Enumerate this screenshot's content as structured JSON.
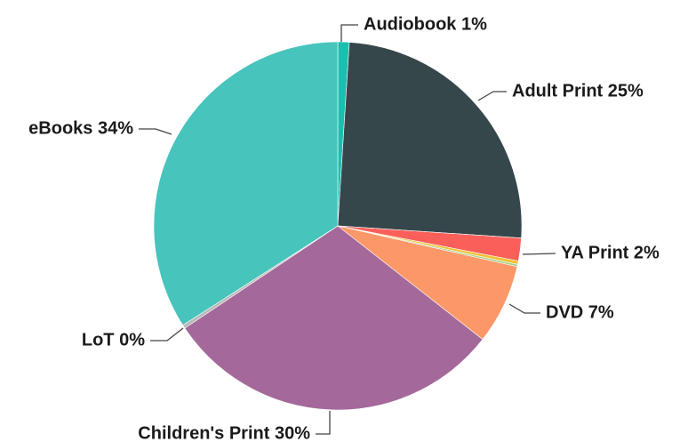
{
  "chart_data": {
    "type": "pie",
    "title": "",
    "slices": [
      {
        "label": "Audiobook",
        "value": 1,
        "pct_label": "Audiobook 1%",
        "color": "#1bbfb0"
      },
      {
        "label": "Adult Print",
        "value": 25,
        "pct_label": "Adult Print 25%",
        "color": "#36474b"
      },
      {
        "label": "YA Print",
        "value": 2,
        "pct_label": "YA Print 2%",
        "color": "#fb5f5a"
      },
      {
        "label": "",
        "value": 0.3,
        "pct_label": "",
        "color": "#f2c12e"
      },
      {
        "label": "",
        "value": 0.2,
        "pct_label": "",
        "color": "#a8d08d"
      },
      {
        "label": "DVD",
        "value": 7,
        "pct_label": "DVD 7%",
        "color": "#fc9768"
      },
      {
        "label": "Children's Print",
        "value": 30,
        "pct_label": "Children's Print 30%",
        "color": "#a4699a"
      },
      {
        "label": "LoT",
        "value": 0.3,
        "pct_label": "LoT 0%",
        "color": "#b8b8b8"
      },
      {
        "label": "eBooks",
        "value": 34,
        "pct_label": "eBooks 34%",
        "color": "#47c4bc"
      }
    ],
    "legend": "none",
    "label_style": "outside with leader lines"
  }
}
